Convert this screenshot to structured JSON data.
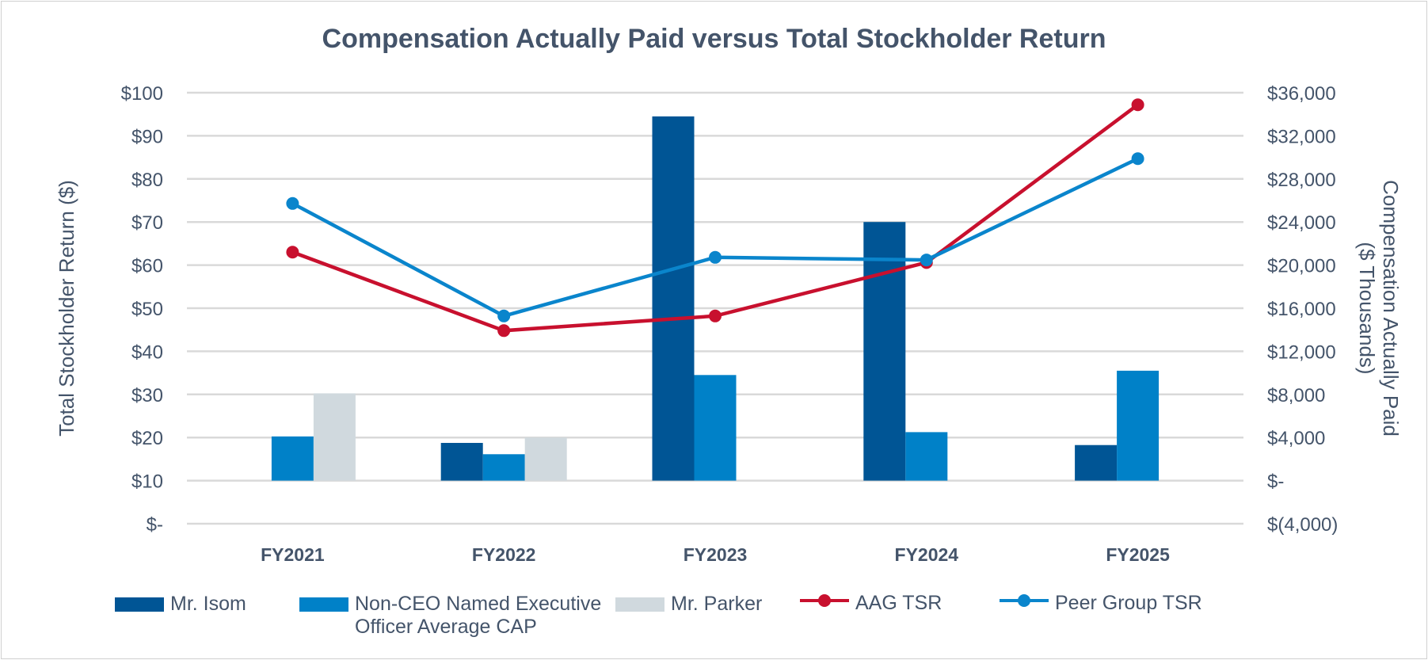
{
  "chart_data": {
    "type": "bar+line",
    "title": "Compensation Actually Paid versus Total Stockholder Return",
    "categories": [
      "FY2021",
      "FY2022",
      "FY2023",
      "FY2024",
      "FY2025"
    ],
    "y_left": {
      "label": "Total Stockholder Return ($)",
      "range": [
        0,
        100
      ],
      "ticks": [
        "$-",
        "$10",
        "$20",
        "$30",
        "$40",
        "$50",
        "$60",
        "$70",
        "$80",
        "$90",
        "$100"
      ]
    },
    "y_right": {
      "label_line1": "Compensation Actually Paid",
      "label_line2": "($ Thousands)",
      "range": [
        -4000,
        36000
      ],
      "ticks": [
        "$(4,000)",
        "$-",
        "$4,000",
        "$8,000",
        "$12,000",
        "$16,000",
        "$20,000",
        "$24,000",
        "$28,000",
        "$32,000",
        "$36,000"
      ]
    },
    "grid": true,
    "legend_position": "bottom",
    "bar_series": [
      {
        "name": "Mr. Isom",
        "axis": "right",
        "color": "#005595",
        "values": [
          null,
          3500,
          33800,
          24000,
          3300
        ]
      },
      {
        "name": "Non-CEO Named Executive Officer Average CAP",
        "axis": "right",
        "color": "#0081c8",
        "values": [
          4100,
          2450,
          9800,
          4500,
          10200
        ]
      },
      {
        "name": "Mr. Parker",
        "axis": "right",
        "color": "#d0d9de",
        "values": [
          8100,
          4000,
          null,
          null,
          null
        ]
      }
    ],
    "line_series": [
      {
        "name": "AAG TSR",
        "axis": "left",
        "color": "#c8102e",
        "values": [
          63.0,
          44.8,
          48.2,
          60.6,
          97.2
        ]
      },
      {
        "name": "Peer Group TSR",
        "axis": "left",
        "color": "#0a85cc",
        "values": [
          74.3,
          48.2,
          61.8,
          61.2,
          84.7
        ]
      }
    ]
  },
  "legend": {
    "isom": "Mr. Isom",
    "nonceo_line1": "Non-CEO Named Executive",
    "nonceo_line2": "Officer Average CAP",
    "parker": "Mr. Parker",
    "aag": "AAG TSR",
    "peer": "Peer Group TSR"
  }
}
